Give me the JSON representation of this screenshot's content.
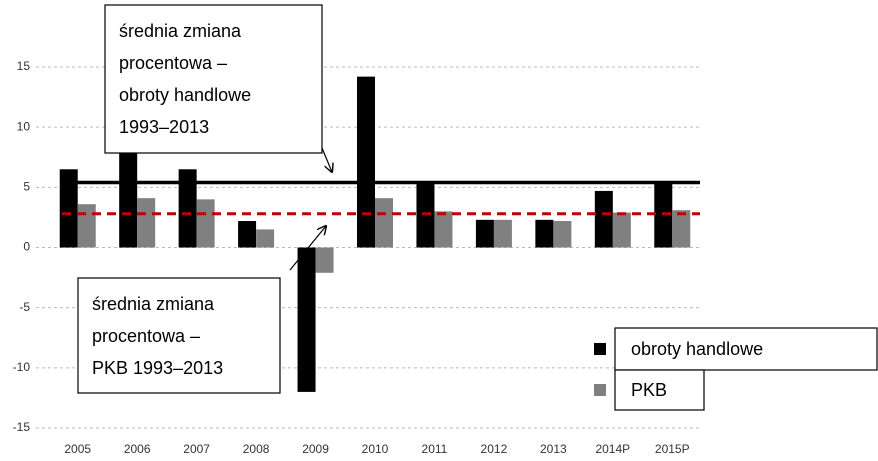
{
  "chart_data": {
    "type": "bar",
    "categories": [
      "2005",
      "2006",
      "2007",
      "2008",
      "2009",
      "2010",
      "2011",
      "2012",
      "2013",
      "2014P",
      "2015P"
    ],
    "series": [
      {
        "name": "obroty handlowe",
        "color": "#000000",
        "values": [
          6.5,
          8.0,
          6.5,
          2.2,
          -12,
          14.2,
          5.3,
          2.3,
          2.3,
          4.7,
          5.4
        ]
      },
      {
        "name": "PKB",
        "color": "#808080",
        "values": [
          3.6,
          4.1,
          4.0,
          1.5,
          -2.1,
          4.1,
          3.0,
          2.3,
          2.2,
          2.9,
          3.1
        ]
      }
    ],
    "reference_lines": [
      {
        "value": 5.4,
        "color": "#000000",
        "style": "solid",
        "annotation": [
          "średnia zmiana",
          "procentowa –",
          "obroty handlowe",
          "1993–2013"
        ]
      },
      {
        "value": 2.8,
        "color": "#c00000",
        "style": "dashed",
        "annotation": [
          "średnia zmiana",
          "procentowa –",
          "PKB 1993–2013"
        ]
      }
    ],
    "ylim": [
      -15,
      15
    ],
    "yticks": [
      15,
      10,
      5,
      0,
      -5,
      -10,
      -15
    ],
    "grid": true
  }
}
